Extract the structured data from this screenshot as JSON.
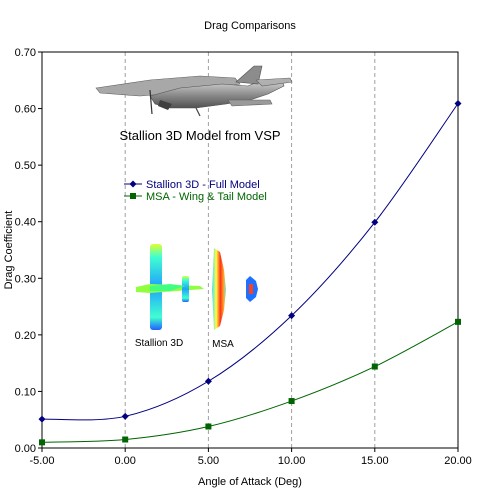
{
  "chart_data": {
    "type": "line",
    "title": "Drag Comparisons",
    "xlabel": "Angle of Attack (Deg)",
    "ylabel": "Drag Coefficient",
    "xlim": [
      -5,
      20
    ],
    "ylim": [
      0,
      0.7
    ],
    "x_ticks": [
      "-5.00",
      "0.00",
      "5.00",
      "10.00",
      "15.00",
      "20.00"
    ],
    "y_ticks": [
      "0.00",
      "0.10",
      "0.20",
      "0.30",
      "0.40",
      "0.50",
      "0.60",
      "0.70"
    ],
    "vertical_grid": "dashed",
    "x": [
      -5,
      0,
      5,
      10,
      15,
      20
    ],
    "series": [
      {
        "name": "Stallion 3D - Full Model",
        "color": "#000080",
        "marker": "diamond",
        "values": [
          0.051,
          0.056,
          0.118,
          0.234,
          0.399,
          0.609
        ]
      },
      {
        "name": "MSA - Wing & Tail Model",
        "color": "#006400",
        "marker": "square",
        "values": [
          0.01,
          0.015,
          0.038,
          0.083,
          0.144,
          0.223
        ]
      }
    ],
    "legend_position": "middle-left",
    "annotations": {
      "model_caption": "Stallion 3D Model from VSP",
      "stallion_label": "Stallion 3D",
      "msa_label": "MSA"
    }
  }
}
